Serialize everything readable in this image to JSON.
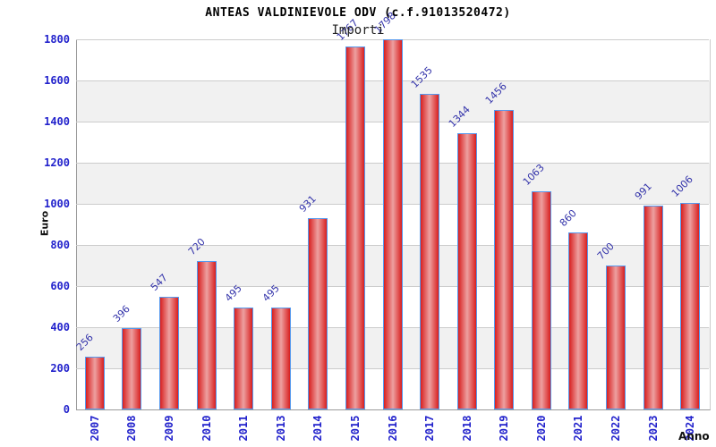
{
  "chart_data": {
    "type": "bar",
    "title": "ANTEAS VALDINIEVOLE ODV (c.f.91013520472)",
    "subtitle": "Importi",
    "xlabel": "Anno",
    "ylabel": "Euro",
    "categories": [
      "2007",
      "2008",
      "2009",
      "2010",
      "2011",
      "2013",
      "2014",
      "2015",
      "2016",
      "2017",
      "2018",
      "2019",
      "2020",
      "2021",
      "2022",
      "2023",
      "2024"
    ],
    "values": [
      256,
      396,
      547,
      720,
      495,
      495,
      931,
      1767,
      1798,
      1535,
      1344,
      1456,
      1063,
      860,
      700,
      991,
      1006
    ],
    "ylim": [
      0,
      1800
    ],
    "ytick_step": 200,
    "yticks": [
      0,
      200,
      400,
      600,
      800,
      1000,
      1200,
      1400,
      1600,
      1800
    ],
    "grid": "horizontal gridlines with alternating 200-unit background bands",
    "legend_position": "none"
  },
  "colors": {
    "background": "#ffffff",
    "band_gray": "#f1f1f1",
    "gridline": "#cccccc",
    "axis_line": "#999999",
    "bar_border": "#5599ee",
    "bar_fill_edge": "#d82020",
    "bar_fill_center": "#eda0a0",
    "tick_label": "#2222cc",
    "value_label": "#3333aa",
    "title": "#000000",
    "subtitle": "#222222"
  }
}
